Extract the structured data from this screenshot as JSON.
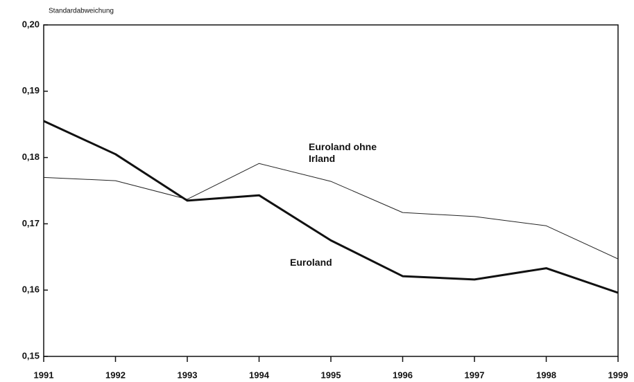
{
  "chart_data": {
    "type": "line",
    "y_axis_label": "Standardabweichung",
    "categories": [
      "1991",
      "1992",
      "1993",
      "1994",
      "1995",
      "1996",
      "1997",
      "1998",
      "1999"
    ],
    "series": [
      {
        "name": "Euroland ohne Irland",
        "color": "#222222",
        "width": 1,
        "values": [
          0.177,
          0.1765,
          0.1737,
          0.1791,
          0.1764,
          0.1717,
          0.1711,
          0.1697,
          0.1647
        ]
      },
      {
        "name": "Euroland",
        "color": "#111111",
        "width": 3,
        "values": [
          0.1855,
          0.1805,
          0.1735,
          0.1743,
          0.1675,
          0.1621,
          0.1616,
          0.1633,
          0.1596
        ]
      }
    ],
    "ylim": [
      0.15,
      0.2
    ],
    "yticks": [
      {
        "value": 0.15,
        "label": "0,15"
      },
      {
        "value": 0.16,
        "label": "0,16"
      },
      {
        "value": 0.17,
        "label": "0,17"
      },
      {
        "value": 0.18,
        "label": "0,18"
      },
      {
        "value": 0.19,
        "label": "0,19"
      },
      {
        "value": 0.2,
        "label": "0,20"
      }
    ],
    "grid": false
  }
}
